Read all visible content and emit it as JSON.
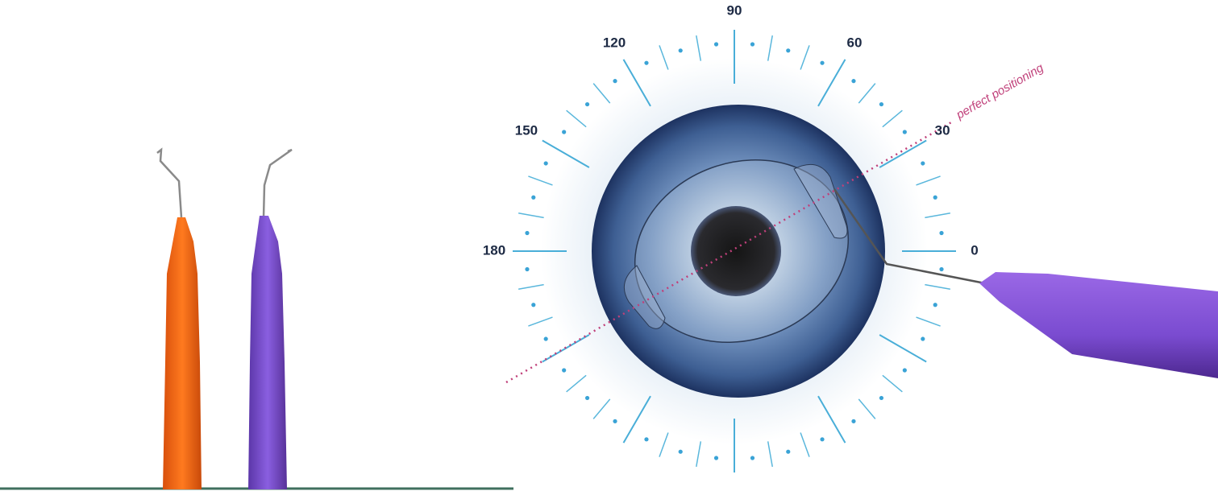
{
  "dial": {
    "ticks": [
      0,
      30,
      60,
      90,
      120,
      150,
      180
    ]
  },
  "annotation": "perfect positioning"
}
